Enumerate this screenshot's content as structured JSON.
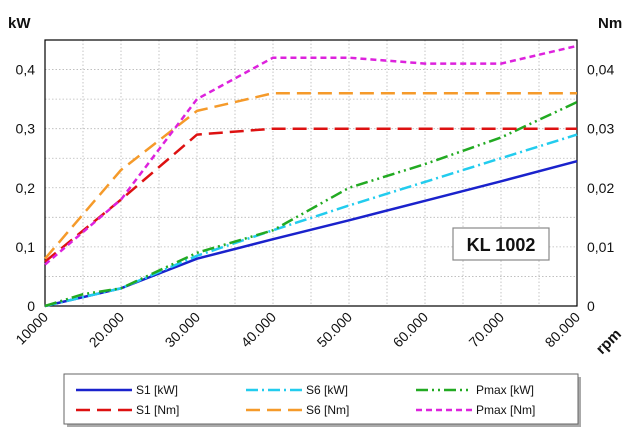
{
  "chart_data": {
    "type": "line",
    "x_axis": {
      "unit": "rpm",
      "tick_values": [
        10000,
        20000,
        30000,
        40000,
        50000,
        60000,
        70000,
        80000
      ],
      "tick_labels": [
        "10000",
        "20.000",
        "30.000",
        "40.000",
        "50.000",
        "60.000",
        "70.000",
        "80.000"
      ],
      "range": [
        10000,
        80000
      ]
    },
    "y_left": {
      "unit": "kW",
      "range": [
        0,
        0.45
      ],
      "tick_values": [
        0,
        0.1,
        0.2,
        0.3,
        0.4
      ],
      "tick_labels": [
        "0",
        "0,1",
        "0,2",
        "0,3",
        "0,4"
      ]
    },
    "y_right": {
      "unit": "Nm",
      "range": [
        0,
        0.045
      ],
      "tick_values": [
        0,
        0.01,
        0.02,
        0.03,
        0.04
      ],
      "tick_labels": [
        "0",
        "0,01",
        "0,02",
        "0,03",
        "0,04"
      ]
    },
    "grid": true,
    "annotation": "KL 1002",
    "legend_position": "bottom",
    "series": [
      {
        "name": "S1 [kW]",
        "axis": "left",
        "color": "#1a22cc",
        "dash": "solid",
        "x": [
          10000,
          20000,
          30000,
          40000,
          50000,
          60000,
          70000,
          80000
        ],
        "y": [
          0,
          0.03,
          0.08,
          0.113,
          0.145,
          0.178,
          0.211,
          0.245
        ]
      },
      {
        "name": "S6 [kW]",
        "axis": "left",
        "color": "#22ccee",
        "dash": "dashdot",
        "x": [
          10000,
          20000,
          30000,
          40000,
          50000,
          60000,
          70000,
          80000
        ],
        "y": [
          0,
          0.03,
          0.085,
          0.128,
          0.17,
          0.21,
          0.25,
          0.29
        ]
      },
      {
        "name": "Pmax [kW]",
        "axis": "left",
        "color": "#22aa22",
        "dash": "dashdotdot",
        "x": [
          10000,
          15000,
          20000,
          30000,
          40000,
          50000,
          60000,
          70000,
          80000
        ],
        "y": [
          0,
          0.02,
          0.03,
          0.09,
          0.128,
          0.2,
          0.24,
          0.285,
          0.345
        ]
      },
      {
        "name": "S1 [Nm]",
        "axis": "right",
        "color": "#dd1111",
        "dash": "dash",
        "x": [
          10000,
          20000,
          30000,
          40000,
          50000,
          60000,
          70000,
          80000
        ],
        "y": [
          0.0075,
          0.018,
          0.029,
          0.03,
          0.03,
          0.03,
          0.03,
          0.03
        ]
      },
      {
        "name": "S6 [Nm]",
        "axis": "right",
        "color": "#f59a2a",
        "dash": "dash",
        "x": [
          10000,
          20000,
          30000,
          40000,
          50000,
          60000,
          70000,
          80000
        ],
        "y": [
          0.008,
          0.023,
          0.033,
          0.036,
          0.036,
          0.036,
          0.036,
          0.036
        ]
      },
      {
        "name": "Pmax [Nm]",
        "axis": "right",
        "color": "#dd22dd",
        "dash": "shortdash",
        "x": [
          10000,
          20000,
          30000,
          40000,
          50000,
          60000,
          70000,
          80000
        ],
        "y": [
          0.007,
          0.018,
          0.035,
          0.042,
          0.042,
          0.041,
          0.041,
          0.044
        ]
      }
    ]
  }
}
